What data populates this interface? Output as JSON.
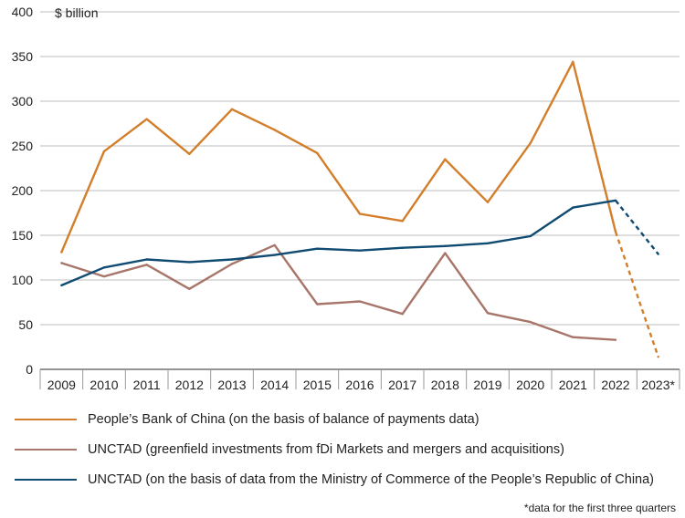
{
  "chart_data": {
    "type": "line",
    "unit_label": "$ billion",
    "title": "",
    "xlabel": "",
    "ylabel": "",
    "categories": [
      "2009",
      "2010",
      "2011",
      "2012",
      "2013",
      "2014",
      "2015",
      "2016",
      "2017",
      "2018",
      "2019",
      "2020",
      "2021",
      "2022",
      "2023*"
    ],
    "ylim": [
      0,
      400
    ],
    "yticks": [
      0,
      50,
      100,
      150,
      200,
      250,
      300,
      350,
      400
    ],
    "grid": "horizontal",
    "legend_position": "bottom",
    "series": [
      {
        "name": "People’s Bank of China (on the basis of balance of payments data)",
        "color": "#d37e2b",
        "values": [
          131,
          244,
          280,
          241,
          291,
          268,
          242,
          174,
          166,
          235,
          187,
          253,
          344,
          154,
          14
        ],
        "estimated_from_index": 13
      },
      {
        "name": "UNCTAD (greenfield investments from fDi Markets and mergers and acquisitions)",
        "color": "#a8756a",
        "values": [
          119,
          104,
          117,
          90,
          118,
          139,
          73,
          76,
          62,
          130,
          63,
          53,
          36,
          33,
          null
        ],
        "estimated_from_index": null
      },
      {
        "name": "UNCTAD (on the basis of data from the Ministry of Commerce of the People’s Republic of China)",
        "color": "#0f4b72",
        "values": [
          94,
          114,
          123,
          120,
          123,
          128,
          135,
          133,
          136,
          138,
          141,
          149,
          181,
          189,
          129
        ],
        "estimated_from_index": 13
      }
    ],
    "footnote": "*data for the first three quarters"
  }
}
